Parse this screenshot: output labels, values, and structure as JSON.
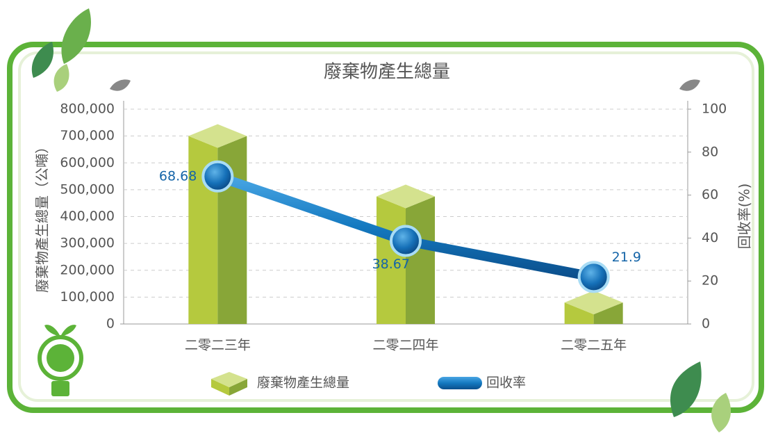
{
  "chart_data": {
    "type": "bar",
    "title": "廢棄物產生總量",
    "categories": [
      "二零二三年",
      "二零二四年",
      "二零二五年"
    ],
    "series": [
      {
        "name": "廢棄物產生總量",
        "type": "bar",
        "color": "#a9c03c",
        "values": [
          700000,
          475000,
          80000
        ]
      },
      {
        "name": "回收率",
        "type": "line",
        "axis": "y2",
        "color": "#1479c0",
        "values": [
          68.68,
          38.67,
          21.9
        ]
      }
    ],
    "y_label": "廢棄物產生總量（公噸）",
    "y2_label": "回收率(%)",
    "ylim": [
      0,
      800000
    ],
    "yticks": [
      0,
      {
        "value": 100000,
        "label": "100,000"
      },
      {
        "value": 200000,
        "label": "200,000"
      },
      {
        "value": 300000,
        "label": "300,000"
      },
      {
        "value": 400000,
        "label": "400,000"
      },
      {
        "value": 500000,
        "label": "500,000"
      },
      {
        "value": 600000,
        "label": "600,000"
      },
      {
        "value": 700000,
        "label": "700,000"
      },
      {
        "value": 800000,
        "label": "800,000"
      }
    ],
    "y2lim": [
      0,
      100
    ],
    "y2ticks": [
      0,
      20,
      40,
      60,
      80,
      100
    ],
    "grid": true
  }
}
